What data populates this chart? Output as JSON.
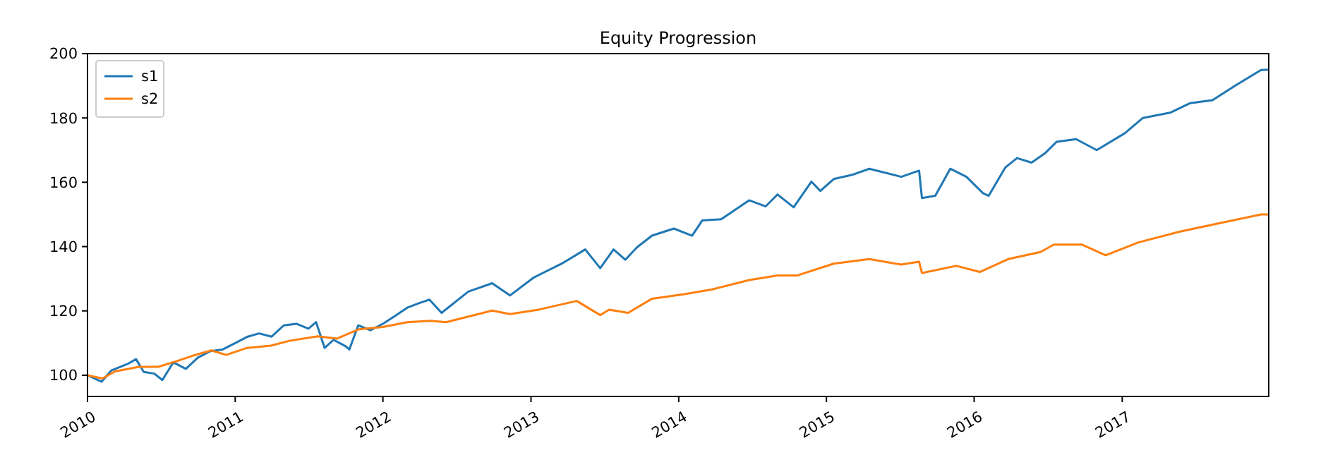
{
  "chart_data": {
    "type": "line",
    "title": "Equity Progression",
    "legend": "top left",
    "grid": false,
    "line_style": "solid",
    "xlim": [
      "2010-01-01",
      "2017-12-29"
    ],
    "xticks": [
      {
        "value": "2010-01-01",
        "label": "2010"
      },
      {
        "value": "2011-01-01",
        "label": "2011"
      },
      {
        "value": "2012-01-01",
        "label": "2012"
      },
      {
        "value": "2013-01-01",
        "label": "2013"
      },
      {
        "value": "2014-01-01",
        "label": "2014"
      },
      {
        "value": "2015-01-01",
        "label": "2015"
      },
      {
        "value": "2016-01-01",
        "label": "2016"
      },
      {
        "value": "2017-01-01",
        "label": "2017"
      }
    ],
    "ylim": [
      93.4,
      200
    ],
    "yticks": [
      100,
      120,
      140,
      160,
      180,
      200
    ],
    "series": [
      {
        "name": "s1",
        "color": "#1f77b4",
        "x": [
          "2010-01-01",
          "2010-02-05",
          "2010-03-01",
          "2010-04-10",
          "2010-05-01",
          "2010-05-20",
          "2010-06-15",
          "2010-07-05",
          "2010-08-01",
          "2010-09-01",
          "2010-10-01",
          "2010-11-01",
          "2010-12-01",
          "2011-01-01",
          "2011-02-01",
          "2011-03-01",
          "2011-04-01",
          "2011-05-01",
          "2011-06-01",
          "2011-07-01",
          "2011-07-20",
          "2011-08-10",
          "2011-09-01",
          "2011-10-01",
          "2011-10-10",
          "2011-11-01",
          "2011-12-01",
          "2012-01-01",
          "2012-02-01",
          "2012-03-01",
          "2012-04-01",
          "2012-04-25",
          "2012-05-25",
          "2012-07-30",
          "2012-09-27",
          "2012-11-10",
          "2013-01-08",
          "2013-03-18",
          "2013-05-15",
          "2013-06-21",
          "2013-07-24",
          "2013-08-22",
          "2013-09-20",
          "2013-10-27",
          "2013-12-20",
          "2014-02-03",
          "2014-02-28",
          "2014-04-16",
          "2014-06-24",
          "2014-08-04",
          "2014-09-02",
          "2014-10-12",
          "2014-11-25",
          "2014-12-17",
          "2015-01-19",
          "2015-03-08",
          "2015-04-17",
          "2015-07-05",
          "2015-08-18",
          "2015-08-25",
          "2015-09-27",
          "2015-11-03",
          "2015-12-13",
          "2016-01-23",
          "2016-02-06",
          "2016-03-18",
          "2016-04-16",
          "2016-05-22",
          "2016-06-24",
          "2016-07-23",
          "2016-09-09",
          "2016-10-30",
          "2017-01-08",
          "2017-02-21",
          "2017-05-01",
          "2017-06-18",
          "2017-08-12",
          "2017-10-09",
          "2017-12-10",
          "2017-12-29"
        ],
        "values": [
          100,
          98,
          101.5,
          103.5,
          105,
          101,
          100.5,
          98.5,
          104,
          102,
          105.5,
          107.5,
          108,
          110,
          112,
          113,
          112,
          115.5,
          116,
          114.5,
          116.5,
          108.5,
          111,
          109,
          108,
          115.5,
          114,
          116,
          118.5,
          121,
          122.5,
          123.5,
          119.4,
          126,
          128.6,
          124.8,
          130.4,
          134.7,
          139.1,
          133.3,
          139.1,
          135.9,
          139.8,
          143.4,
          145.6,
          143.4,
          148.1,
          148.5,
          154.4,
          152.5,
          156.2,
          152.2,
          160.2,
          157.3,
          161,
          162.4,
          164.2,
          161.7,
          163.6,
          155.1,
          155.8,
          164.2,
          161.7,
          156.6,
          155.8,
          164.6,
          167.5,
          166.1,
          169,
          172.6,
          173.4,
          170,
          175.3,
          180,
          181.7,
          184.6,
          185.5,
          190.2,
          194.9,
          195
        ]
      },
      {
        "name": "s2",
        "color": "#ff7f0e",
        "x": [
          "2010-01-01",
          "2010-02-07",
          "2010-03-10",
          "2010-05-08",
          "2010-06-25",
          "2010-08-10",
          "2010-09-24",
          "2010-11-03",
          "2010-12-10",
          "2011-01-30",
          "2011-03-30",
          "2011-05-15",
          "2011-07-24",
          "2011-09-10",
          "2011-11-03",
          "2012-01-01",
          "2012-03-01",
          "2012-04-28",
          "2012-06-05",
          "2012-09-27",
          "2012-11-10",
          "2013-01-20",
          "2013-04-24",
          "2013-06-21",
          "2013-07-13",
          "2013-08-29",
          "2013-10-27",
          "2014-01-15",
          "2014-03-25",
          "2014-06-24",
          "2014-09-02",
          "2014-10-20",
          "2015-01-19",
          "2015-04-17",
          "2015-07-05",
          "2015-08-18",
          "2015-08-25",
          "2015-11-18",
          "2016-01-15",
          "2016-03-25",
          "2016-06-13",
          "2016-07-16",
          "2016-09-24",
          "2016-11-21",
          "2017-02-10",
          "2017-05-22",
          "2017-08-22",
          "2017-12-10",
          "2017-12-29"
        ],
        "values": [
          100,
          99,
          101.2,
          102.6,
          102.6,
          104.4,
          106.3,
          107.7,
          106.3,
          108.5,
          109.2,
          110.7,
          112.1,
          111.4,
          114.3,
          115,
          116.5,
          116.9,
          116.5,
          120.1,
          119,
          120.4,
          123.1,
          118.7,
          120.4,
          119.4,
          123.8,
          125.2,
          126.7,
          129.6,
          131,
          131,
          134.7,
          136.1,
          134.4,
          135.3,
          131.8,
          134,
          132.1,
          136.1,
          138.3,
          140.6,
          140.6,
          137.3,
          141.3,
          144.6,
          147.1,
          150,
          150
        ]
      }
    ]
  }
}
